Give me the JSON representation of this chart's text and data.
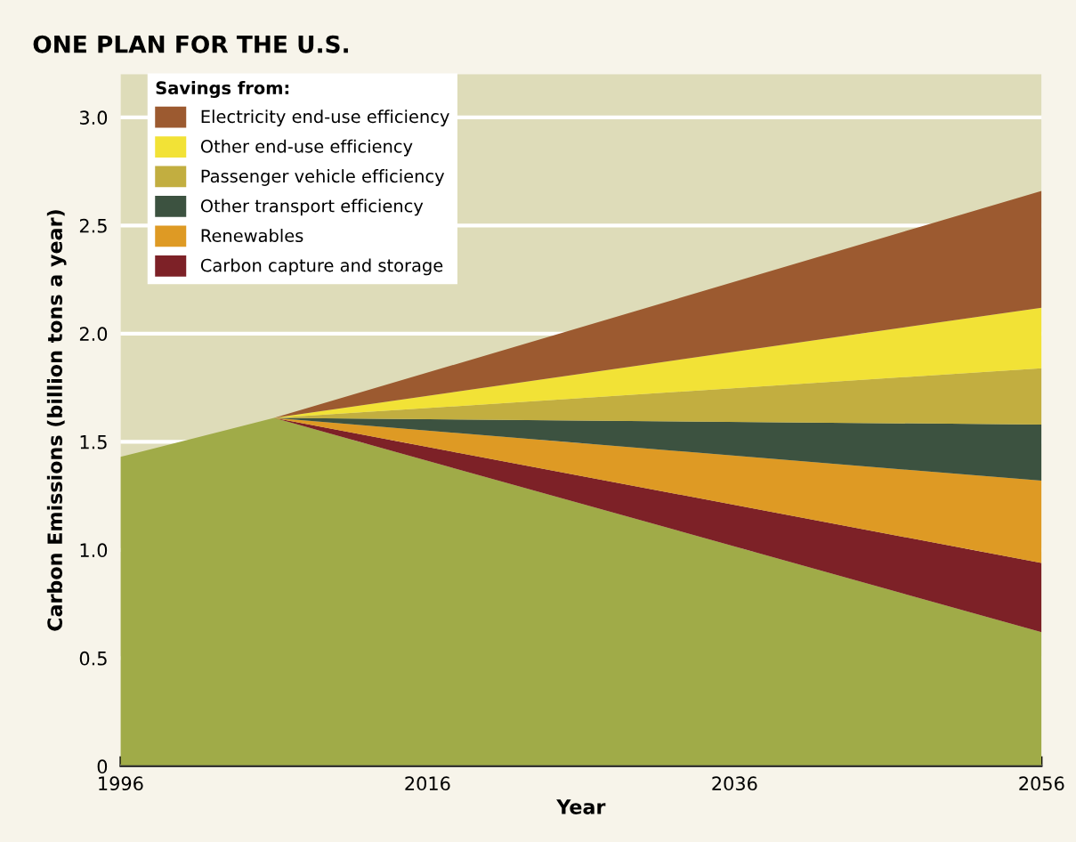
{
  "chart_data": {
    "type": "area",
    "stacked": true,
    "title": "ONE PLAN FOR THE U.S.",
    "xlabel": "Year",
    "ylabel": "Carbon Emissions (billion tons a year)",
    "legend_title": "Savings from:",
    "legend": "top left",
    "grid": "y",
    "x": [
      1996,
      2006,
      2056
    ],
    "series": [
      {
        "color": "#a0ab48",
        "values": [
          1.43,
          1.61,
          0.62
        ]
      },
      {
        "name": "Carbon capture and storage",
        "color": "#7d2127",
        "values": [
          0,
          0,
          0.32
        ]
      },
      {
        "name": "Renewables",
        "color": "#de9a24",
        "values": [
          0,
          0,
          0.38
        ]
      },
      {
        "name": "Other transport efficiency",
        "color": "#3c5240",
        "values": [
          0,
          0,
          0.26
        ]
      },
      {
        "name": "Passenger vehicle efficiency",
        "color": "#c2ae40",
        "values": [
          0,
          0,
          0.26
        ]
      },
      {
        "name": "Other end-use efficiency",
        "color": "#f2e236",
        "values": [
          0,
          0,
          0.28
        ]
      },
      {
        "name": "Electricity end-use efficiency",
        "color": "#9c5a30",
        "values": [
          0,
          0,
          0.54
        ]
      }
    ],
    "xlim": [
      1996,
      2056
    ],
    "xticks": [
      1996,
      {
        "value": 2006,
        "label": null
      },
      2016,
      {
        "value": 2026,
        "label": null
      },
      2036,
      {
        "value": 2046,
        "label": null
      },
      2056
    ],
    "bands": [
      {
        "axis": "y",
        "from": 0,
        "to": 3.2,
        "color": "#dedcb9"
      }
    ],
    "ylim": [
      0,
      3.2
    ],
    "yticks": [
      0,
      0.5,
      {
        "value": 1,
        "label": "1.0"
      },
      1.5,
      {
        "value": 2,
        "label": "2.0"
      },
      2.5,
      {
        "value": 3,
        "label": "3.0"
      }
    ]
  }
}
